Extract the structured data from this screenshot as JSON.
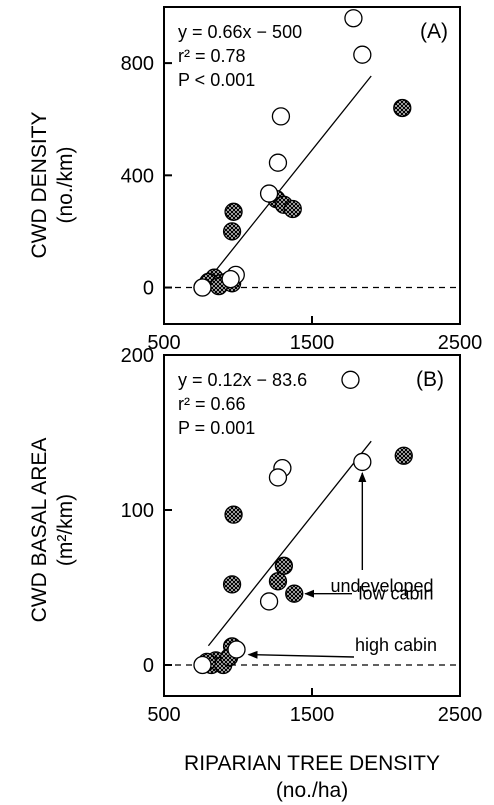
{
  "chart_data": [
    {
      "type": "scatter",
      "panel_label": "(A)",
      "ylabel_line1": "CWD DENSITY",
      "ylabel_line2": "(no./km)",
      "xlim": [
        500,
        2500
      ],
      "ylim": [
        -130,
        1000
      ],
      "xticks": [
        "500",
        "1500",
        "2500"
      ],
      "yticks": [
        "0",
        "400",
        "800"
      ],
      "xtick_values": [
        500,
        1500,
        2500
      ],
      "ytick_values": [
        0,
        400,
        800
      ],
      "equation": [
        "y = 0.66x − 500",
        "r² = 0.78",
        "P < 0.001"
      ],
      "fit_line": {
        "slope": 0.66,
        "intercept": -500,
        "x_range": [
          790,
          1900
        ]
      },
      "zero_line": true,
      "series": [
        {
          "marker": "open-circle",
          "x": [
            1780,
            1840,
            1290,
            1270,
            1210,
            985,
            950,
            760
          ],
          "y": [
            960,
            830,
            610,
            445,
            335,
            45,
            30,
            0
          ]
        },
        {
          "marker": "hatched-circle",
          "x": [
            2110,
            970,
            960,
            1260,
            1310,
            1370,
            840,
            800,
            880,
            920,
            960,
            870,
            760
          ],
          "y": [
            640,
            270,
            200,
            315,
            295,
            280,
            35,
            20,
            15,
            20,
            15,
            5,
            0
          ]
        }
      ]
    },
    {
      "type": "scatter",
      "panel_label": "(B)",
      "ylabel_line1": "CWD BASAL AREA",
      "ylabel_line2": "(m²/km)",
      "xlabel_line1": "RIPARIAN TREE DENSITY",
      "xlabel_line2": "(no./ha)",
      "xlim": [
        500,
        2500
      ],
      "ylim": [
        -20,
        200
      ],
      "xticks": [
        "500",
        "1500",
        "2500"
      ],
      "yticks": [
        "0",
        "100",
        "200"
      ],
      "xtick_values": [
        500,
        1500,
        2500
      ],
      "ytick_values": [
        0,
        100,
        200
      ],
      "equation": [
        "y = 0.12x − 83.6",
        "r² = 0.66",
        "P = 0.001"
      ],
      "fit_line": {
        "slope": 0.12,
        "intercept": -83.6,
        "x_range": [
          800,
          1900
        ]
      },
      "zero_line": true,
      "series": [
        {
          "marker": "open-circle",
          "x": [
            1760,
            1840,
            1300,
            1270,
            1210,
            990,
            760
          ],
          "y": [
            184,
            131,
            127,
            121,
            41,
            10,
            0
          ]
        },
        {
          "marker": "hatched-circle",
          "x": [
            2120,
            970,
            960,
            1310,
            1270,
            1380,
            960,
            850,
            820,
            900,
            940,
            790
          ],
          "y": [
            135,
            97,
            52,
            64,
            54,
            46,
            12,
            3,
            0,
            0,
            5,
            2
          ]
        }
      ],
      "annotations": [
        "undeveloped",
        "low cabin",
        "high cabin"
      ]
    }
  ]
}
